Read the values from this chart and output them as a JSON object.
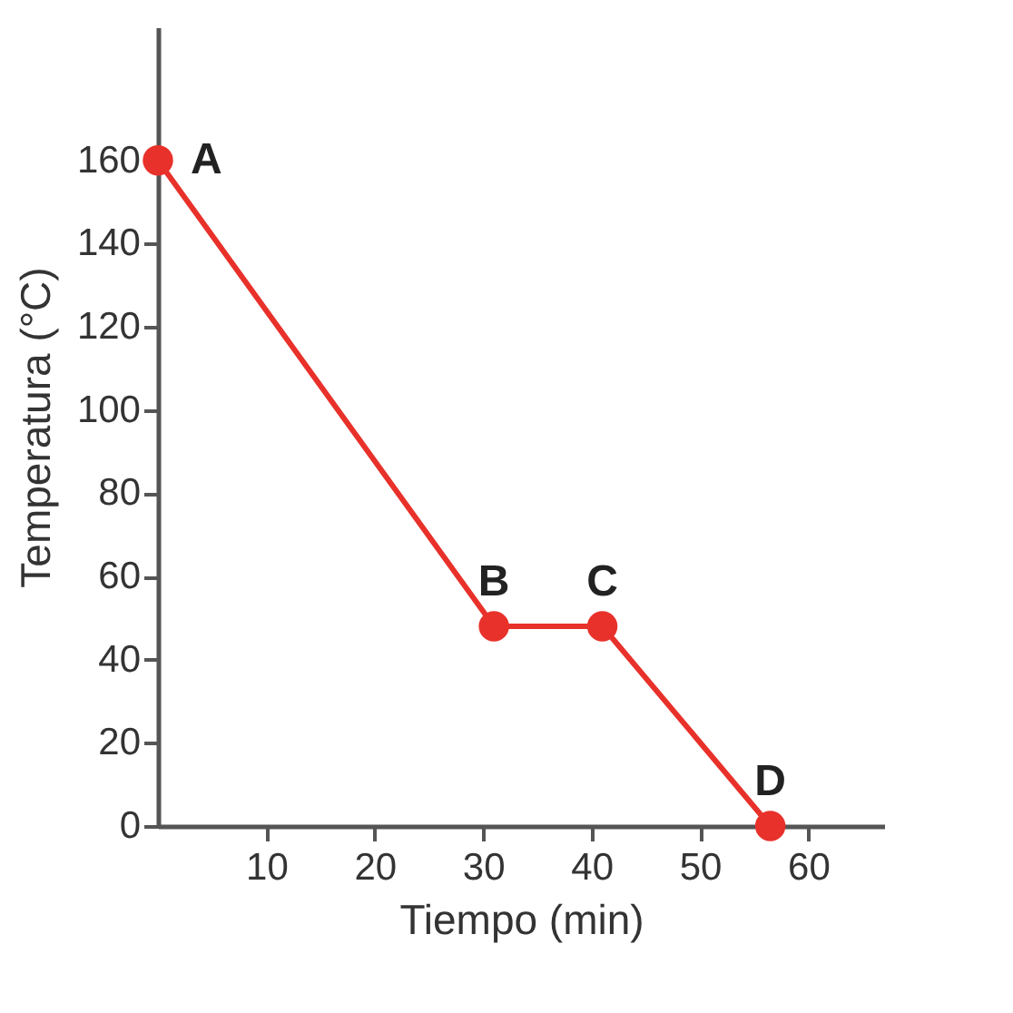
{
  "chart_data": {
    "type": "line",
    "xlabel": "Tiempo (min)",
    "ylabel": "Temperatura (°C)",
    "x": [
      0,
      31,
      41,
      56.5
    ],
    "series": [
      {
        "color": "#e8312a",
        "values": [
          160,
          48,
          48,
          0
        ]
      }
    ],
    "xlim": [
      0,
      67
    ],
    "ylim": [
      0,
      192
    ],
    "xticks": [
      10,
      20,
      30,
      40,
      50,
      60
    ],
    "yticks": [
      0,
      20,
      40,
      60,
      80,
      100,
      120,
      140,
      160
    ],
    "marker": "circle",
    "line_style": "solid",
    "grid": false,
    "annotations": [
      {
        "text": "A",
        "x": 0,
        "y": 160
      },
      {
        "text": "B",
        "x": 31,
        "y": 48
      },
      {
        "text": "C",
        "x": 41,
        "y": 48
      },
      {
        "text": "D",
        "x": 56.5,
        "y": 0
      }
    ]
  }
}
